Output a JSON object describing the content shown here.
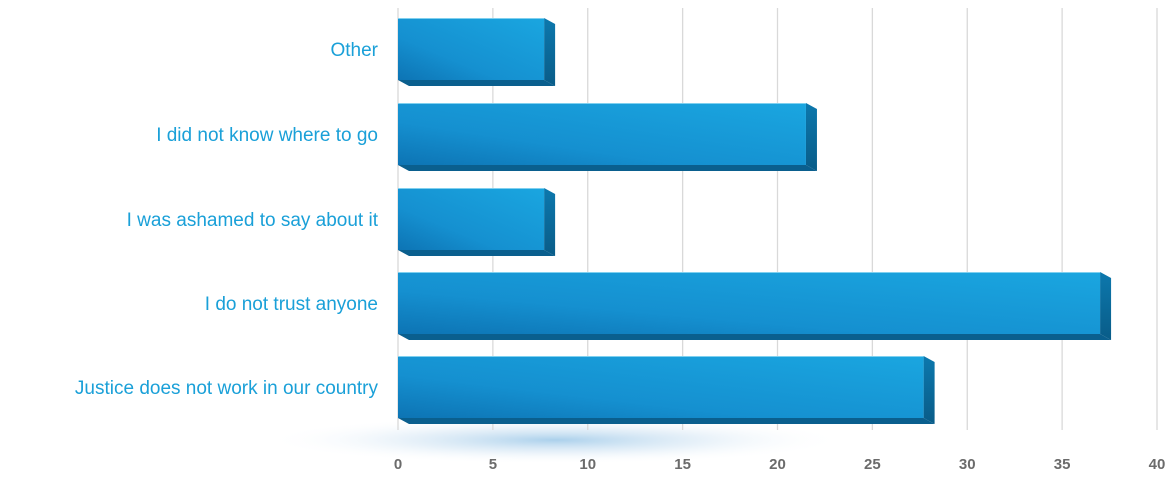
{
  "chart_data": {
    "type": "bar",
    "orientation": "horizontal",
    "categories": [
      "Other",
      "I did not know where to go",
      "I was ashamed to say about it",
      "I do not trust anyone",
      "Justice does not work in our country"
    ],
    "values": [
      7.7,
      21.5,
      7.7,
      37.0,
      27.7
    ],
    "xlim": [
      0,
      40
    ],
    "x_ticks": [
      "0",
      "5",
      "10",
      "15",
      "20",
      "25",
      "30",
      "35",
      "40"
    ],
    "grid": "vertical",
    "legend": "none",
    "colors": {
      "bar_front": "#1aa0dc",
      "bar_front_dark": "#0d74b4",
      "bar_side": "#0a6a9c",
      "bar_top": "#7fd0ef",
      "label": "#1aa0d8",
      "tick": "#6b6b6b",
      "grid": "#d9d9d9"
    }
  }
}
